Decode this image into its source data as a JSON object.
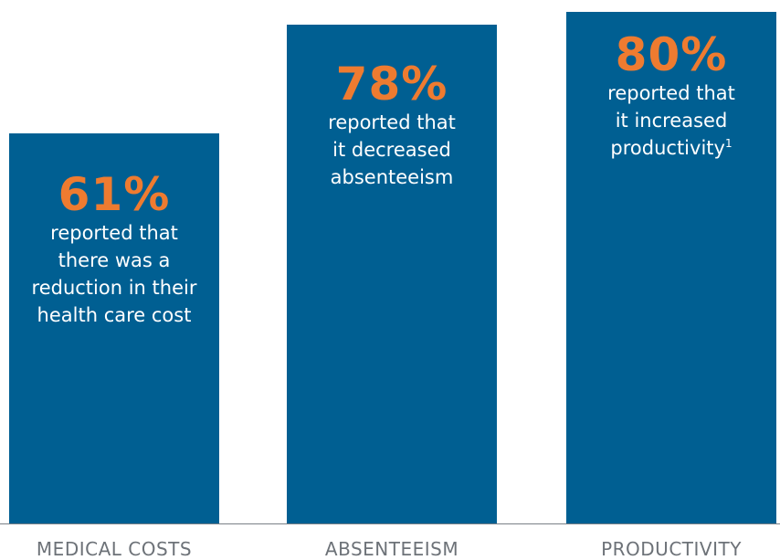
{
  "chart_data": {
    "type": "bar",
    "title": "",
    "xlabel": "",
    "ylabel": "",
    "grid": false,
    "legend": "none",
    "colors": {
      "bar": "#005f92",
      "value_text": "#ee7b30",
      "description_text": "#ffffff",
      "category_text": "#6d7278",
      "baseline": "#7a8087"
    },
    "categories": [
      "MEDICAL COSTS",
      "ABSENTEEISM",
      "PRODUCTIVITY"
    ],
    "values": [
      61,
      78,
      80
    ],
    "ylim": [
      0,
      100
    ],
    "value_labels": [
      "61%",
      "78%",
      "80%"
    ],
    "descriptions": [
      "reported that\nthere was a\nreduction in their\nhealth care cost",
      "reported that\nit decreased\nabsenteeism",
      "reported that\nit increased\nproductivity"
    ],
    "footnote_marks": [
      "",
      "",
      "1"
    ]
  }
}
